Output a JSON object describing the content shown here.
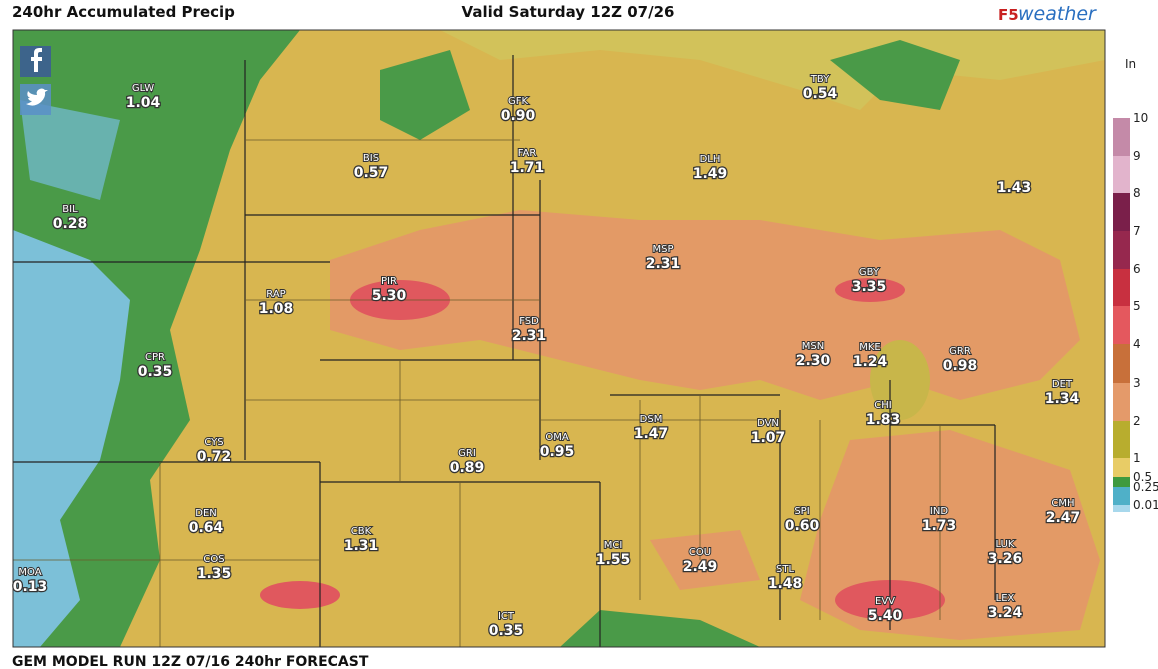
{
  "header": {
    "title": "240hr Accumulated Precip",
    "valid": "Valid Saturday 12Z 07/26",
    "logo_prefix": "F5",
    "logo_name": "weather"
  },
  "footer": "GEM MODEL RUN 12Z 07/16 240hr FORECAST",
  "legend": {
    "unit": "In",
    "stops": [
      {
        "label": "10",
        "color": "#c48aa8"
      },
      {
        "label": "9",
        "color": "#e2b4cc"
      },
      {
        "label": "8",
        "color": "#7a1f4a"
      },
      {
        "label": "7",
        "color": "#96284e"
      },
      {
        "label": "6",
        "color": "#c83040"
      },
      {
        "label": "5",
        "color": "#e4585e"
      },
      {
        "label": "4",
        "color": "#c8703a"
      },
      {
        "label": "3",
        "color": "#e49a6a"
      },
      {
        "label": "2",
        "color": "#b8ad2e"
      },
      {
        "label": "1",
        "color": "#e8cc66"
      },
      {
        "label": "0.5",
        "color": "#3f9a3f"
      },
      {
        "label": "0.25",
        "color": "#4fb0c8"
      },
      {
        "label": "0.01",
        "color": "#a8d8ec"
      }
    ]
  },
  "stations": [
    {
      "code": "GLW",
      "value": "1.04"
    },
    {
      "code": "GFK",
      "value": "0.90"
    },
    {
      "code": "TBY",
      "value": "0.54"
    },
    {
      "code": "BIS",
      "value": "0.57"
    },
    {
      "code": "FAR",
      "value": "1.71"
    },
    {
      "code": "DLH",
      "value": "1.49"
    },
    {
      "value": "1.43"
    },
    {
      "code": "BIL",
      "value": "0.28"
    },
    {
      "code": "MSP",
      "value": "2.31"
    },
    {
      "code": "GBY",
      "value": "3.35"
    },
    {
      "code": "PIR",
      "value": "5.30"
    },
    {
      "code": "RAP",
      "value": "1.08"
    },
    {
      "code": "FSD",
      "value": "2.31"
    },
    {
      "code": "MSN",
      "value": "2.30"
    },
    {
      "code": "MKE",
      "value": "1.24"
    },
    {
      "code": "GRR",
      "value": "0.98"
    },
    {
      "code": "CPR",
      "value": "0.35"
    },
    {
      "code": "DET",
      "value": "1.34"
    },
    {
      "code": "CHI",
      "value": "1.83"
    },
    {
      "code": "DSM",
      "value": "1.47"
    },
    {
      "code": "DVN",
      "value": "1.07"
    },
    {
      "code": "OMA",
      "value": "0.95"
    },
    {
      "code": "GRI",
      "value": "0.89"
    },
    {
      "code": "CYS",
      "value": "0.72"
    },
    {
      "code": "DEN",
      "value": "0.64"
    },
    {
      "code": "SPI",
      "value": "0.60"
    },
    {
      "code": "IND",
      "value": "1.73"
    },
    {
      "code": "CMH",
      "value": "2.47"
    },
    {
      "code": "CBK",
      "value": "1.31"
    },
    {
      "code": "MCI",
      "value": "1.55"
    },
    {
      "code": "COU",
      "value": "2.49"
    },
    {
      "code": "LUK",
      "value": "3.26"
    },
    {
      "code": "COS",
      "value": "1.35"
    },
    {
      "code": "STL",
      "value": "1.48"
    },
    {
      "code": "MOA",
      "value": "0.13"
    },
    {
      "code": "EVV",
      "value": "5.40"
    },
    {
      "code": "LEX",
      "value": "3.24"
    },
    {
      "code": "ICT",
      "value": "0.35"
    }
  ]
}
